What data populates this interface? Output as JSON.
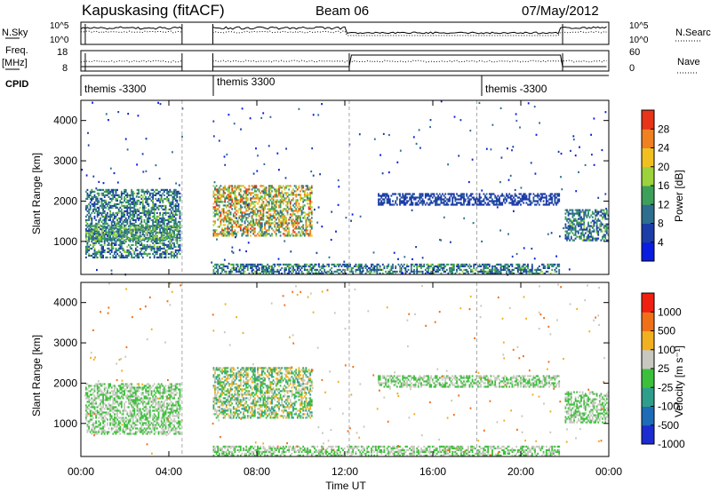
{
  "header": {
    "station": "Kapuskasing (fitACF)",
    "beam": "Beam 06",
    "date": "07/May/2012"
  },
  "strip_labels": {
    "nsky_line1": "N.Sky",
    "nsky_ticks": [
      "10^5",
      "10^0"
    ],
    "nsearch_ticks": [
      "10^5",
      "10^0"
    ],
    "nsearch": "N.Search",
    "freq_line1": "Freq.",
    "freq_line2": "[MHz]",
    "freq_ticks": [
      "18",
      "8"
    ],
    "nave_ticks": [
      "60",
      "0"
    ],
    "nave": "Nave",
    "cpid": "CPID"
  },
  "cpid_labels": [
    "themis -3300",
    "themis 3300",
    "themis -3300"
  ],
  "panels": {
    "ylabel": "Slant Range [km]",
    "yticks": [
      "4000",
      "3000",
      "2000",
      "1000"
    ],
    "xlabel": "Time UT",
    "xticks": [
      "00:00",
      "04:00",
      "08:00",
      "12:00",
      "16:00",
      "20:00",
      "00:00"
    ]
  },
  "colorbars": {
    "power": {
      "label": "Power [dB]",
      "ticks": [
        "28",
        "24",
        "20",
        "16",
        "12",
        "8",
        "4"
      ],
      "colors": [
        "#0a1ce0",
        "#1c3ca8",
        "#2e6e8e",
        "#3ca05a",
        "#9cd23c",
        "#f0c020",
        "#f08020",
        "#e83418"
      ]
    },
    "velocity": {
      "label": "Velocity [m s⁻¹]",
      "ticks": [
        "1000",
        "500",
        "100",
        "25",
        "-25",
        "-100",
        "-500",
        "-1000"
      ],
      "colors": [
        "#1c2cd0",
        "#1c6cb8",
        "#2e9e8a",
        "#3cc03c",
        "#c8c8c0",
        "#f0b020",
        "#f07018",
        "#f02010"
      ]
    }
  },
  "chart_data": [
    {
      "type": "heatmap",
      "title": "Power",
      "xlabel": "Time UT",
      "ylabel": "Slant Range [km]",
      "xlim": [
        "00:00",
        "24:00"
      ],
      "ylim": [
        180,
        4500
      ],
      "colorbar_range_dB": [
        0,
        30
      ],
      "regions": [
        {
          "t_start": 0.2,
          "t_end": 4.5,
          "range_km": [
            600,
            2300
          ],
          "power_dB": [
            4,
            16
          ]
        },
        {
          "t_start": 0.2,
          "t_end": 4.5,
          "range_km": [
            1000,
            1400
          ],
          "power_dB": [
            8,
            18
          ]
        },
        {
          "t_start": 6.0,
          "t_end": 10.5,
          "range_km": [
            1100,
            2400
          ],
          "power_dB": [
            8,
            28
          ]
        },
        {
          "t_start": 6.0,
          "t_end": 21.8,
          "range_km": [
            180,
            450
          ],
          "power_dB": [
            4,
            16
          ]
        },
        {
          "t_start": 13.5,
          "t_end": 21.8,
          "range_km": [
            1900,
            2200
          ],
          "power_dB": [
            4,
            8
          ]
        },
        {
          "t_start": 22.0,
          "t_end": 24.0,
          "range_km": [
            1000,
            1800
          ],
          "power_dB": [
            4,
            16
          ]
        }
      ]
    },
    {
      "type": "heatmap",
      "title": "Velocity",
      "xlabel": "Time UT",
      "ylabel": "Slant Range [km]",
      "xlim": [
        "00:00",
        "24:00"
      ],
      "ylim": [
        180,
        4500
      ],
      "colorbar_range_ms": [
        -1000,
        1000
      ],
      "regions": [
        {
          "t_start": 0.2,
          "t_end": 4.5,
          "range_km": [
            700,
            2000
          ],
          "velocity_ms": [
            -25,
            25
          ]
        },
        {
          "t_start": 6.0,
          "t_end": 10.5,
          "range_km": [
            1100,
            2400
          ],
          "velocity_ms": [
            -500,
            500
          ]
        },
        {
          "t_start": 6.0,
          "t_end": 21.8,
          "range_km": [
            180,
            450
          ],
          "velocity_ms": [
            -25,
            25
          ]
        },
        {
          "t_start": 13.5,
          "t_end": 21.8,
          "range_km": [
            1900,
            2200
          ],
          "velocity_ms": [
            -25,
            25
          ]
        },
        {
          "t_start": 22.0,
          "t_end": 24.0,
          "range_km": [
            1000,
            1800
          ],
          "velocity_ms": [
            -25,
            25
          ]
        }
      ]
    }
  ]
}
